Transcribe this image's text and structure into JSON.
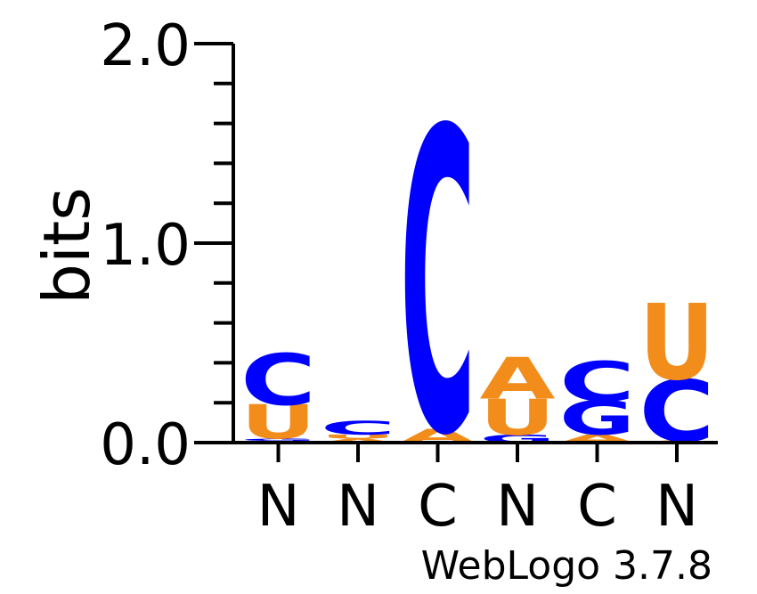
{
  "chart_data": {
    "type": "sequence-logo",
    "ylabel": "bits",
    "ylim": [
      0,
      2.0
    ],
    "yticks": [
      {
        "value": 0.0,
        "label": "0.0"
      },
      {
        "value": 1.0,
        "label": "1.0"
      },
      {
        "value": 2.0,
        "label": "2.0"
      }
    ],
    "minor_tick_step": 0.2,
    "xticklabels": [
      "N",
      "N",
      "C",
      "N",
      "C",
      "N"
    ],
    "credit": "WebLogo 3.7.8",
    "colors": {
      "A": "#f28c1a",
      "C": "#0000ff",
      "G": "#0000ff",
      "U": "#f28c1a"
    },
    "positions": [
      {
        "stack": [
          {
            "letter": "A",
            "bits": 0.01
          },
          {
            "letter": "G",
            "bits": 0.01
          },
          {
            "letter": "U",
            "bits": 0.17
          },
          {
            "letter": "C",
            "bits": 0.26
          }
        ]
      },
      {
        "stack": [
          {
            "letter": "A",
            "bits": 0.02
          },
          {
            "letter": "U",
            "bits": 0.02
          },
          {
            "letter": "C",
            "bits": 0.07
          }
        ]
      },
      {
        "stack": [
          {
            "letter": "A",
            "bits": 0.07
          },
          {
            "letter": "C",
            "bits": 1.52
          }
        ]
      },
      {
        "stack": [
          {
            "letter": "G",
            "bits": 0.04
          },
          {
            "letter": "U",
            "bits": 0.18
          },
          {
            "letter": "A",
            "bits": 0.21
          }
        ]
      },
      {
        "stack": [
          {
            "letter": "A",
            "bits": 0.04
          },
          {
            "letter": "G",
            "bits": 0.17
          },
          {
            "letter": "C",
            "bits": 0.2
          }
        ]
      },
      {
        "stack": [
          {
            "letter": "A",
            "bits": 0.01
          },
          {
            "letter": "C",
            "bits": 0.31
          },
          {
            "letter": "U",
            "bits": 0.38
          }
        ]
      }
    ]
  }
}
